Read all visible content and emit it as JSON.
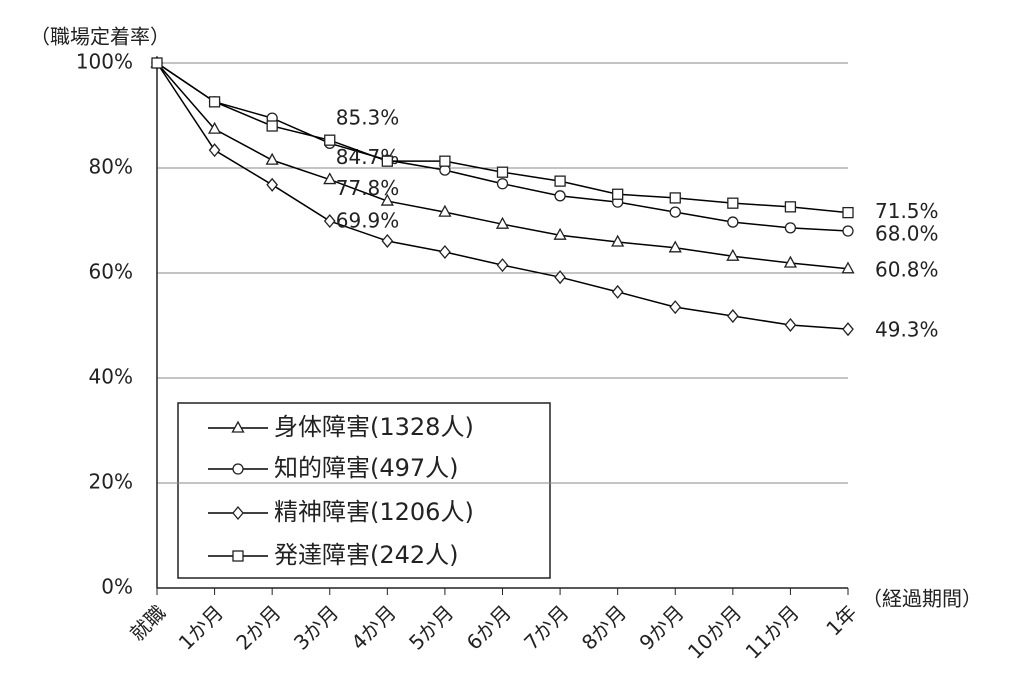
{
  "chart_data": {
    "type": "line",
    "y_axis_label": "（職場定着率）",
    "x_axis_label": "（経過期間）",
    "categories": [
      "就職",
      "1か月",
      "2か月",
      "3か月",
      "4か月",
      "5か月",
      "6か月",
      "7か月",
      "8か月",
      "9か月",
      "10か月",
      "11か月",
      "1年"
    ],
    "ylim": [
      0,
      100
    ],
    "yticks": [
      {
        "value": 0,
        "label": "0%"
      },
      {
        "value": 20,
        "label": "20%"
      },
      {
        "value": 40,
        "label": "40%"
      },
      {
        "value": 60,
        "label": "60%"
      },
      {
        "value": 80,
        "label": "80%"
      },
      {
        "value": 100,
        "label": "100%"
      }
    ],
    "grid": true,
    "series": [
      {
        "name": "身体障害(1328人)",
        "color": "#000000",
        "marker": "triangle",
        "values": [
          100,
          87.4,
          81.5,
          77.8,
          73.7,
          71.6,
          69.3,
          67.2,
          65.9,
          64.8,
          63.2,
          61.9,
          60.8
        ],
        "value_labels": [
          null,
          null,
          null,
          "77.8%",
          null,
          null,
          null,
          null,
          null,
          null,
          null,
          null,
          "60.8%"
        ]
      },
      {
        "name": "知的障害(497人)",
        "color": "#000000",
        "marker": "circle",
        "values": [
          100,
          92.6,
          89.5,
          84.7,
          81.5,
          79.6,
          77.0,
          74.7,
          73.5,
          71.6,
          69.7,
          68.6,
          68.0
        ],
        "value_labels": [
          null,
          null,
          null,
          "84.7%",
          null,
          null,
          null,
          null,
          null,
          null,
          null,
          null,
          "68.0%"
        ]
      },
      {
        "name": "精神障害(1206人)",
        "color": "#000000",
        "marker": "diamond",
        "values": [
          100,
          83.4,
          76.8,
          69.9,
          66.1,
          64.0,
          61.5,
          59.2,
          56.4,
          53.5,
          51.8,
          50.1,
          49.3
        ],
        "value_labels": [
          null,
          null,
          null,
          "69.9%",
          null,
          null,
          null,
          null,
          null,
          null,
          null,
          null,
          "49.3%"
        ]
      },
      {
        "name": "発達障害(242人)",
        "color": "#000000",
        "marker": "square",
        "values": [
          100,
          92.6,
          88.0,
          85.3,
          81.3,
          81.3,
          79.2,
          77.5,
          75.0,
          74.3,
          73.3,
          72.6,
          71.5
        ],
        "value_labels": [
          null,
          null,
          null,
          "85.3%",
          null,
          null,
          null,
          null,
          null,
          null,
          null,
          null,
          "71.5%"
        ]
      }
    ]
  }
}
